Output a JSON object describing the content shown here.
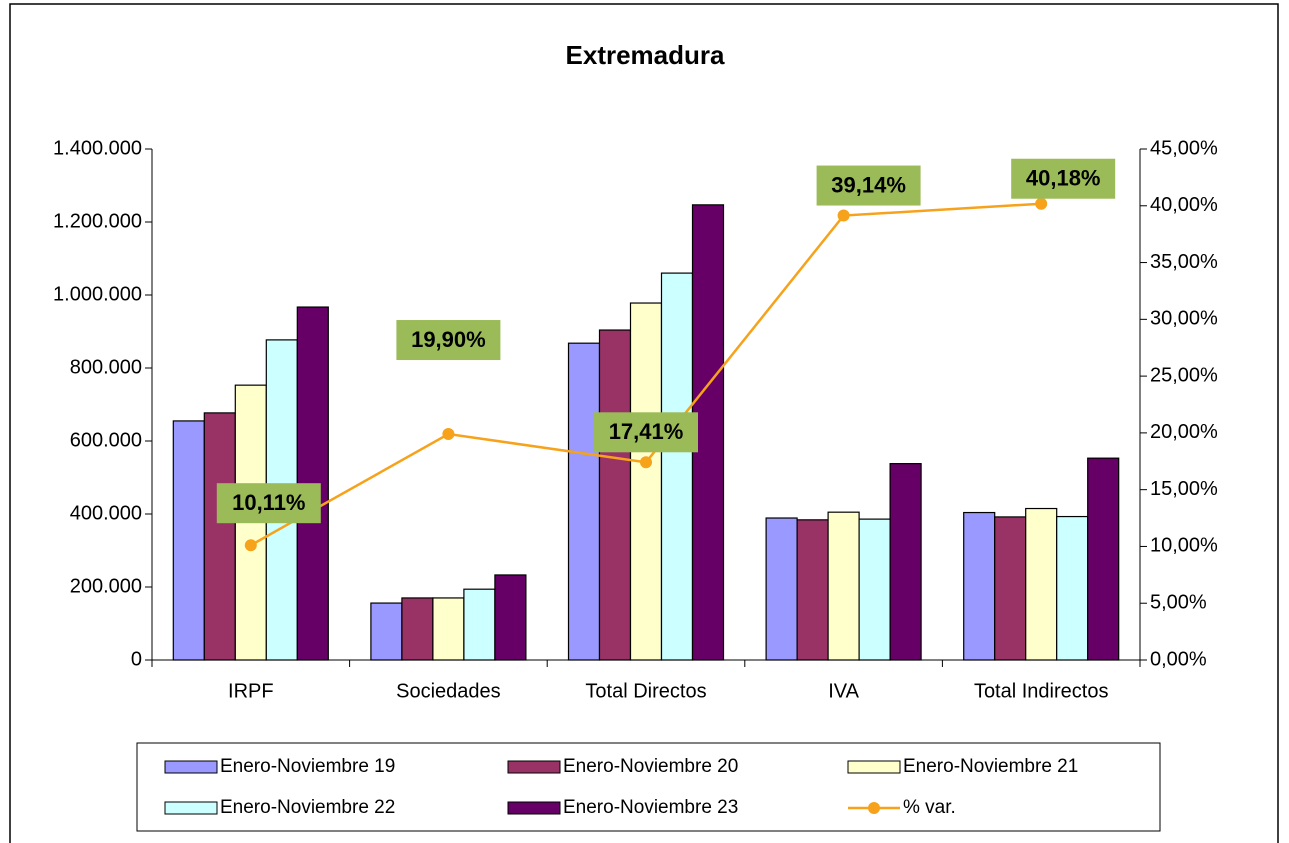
{
  "chart_data": {
    "type": "bar",
    "title": "Extremadura",
    "categories": [
      "IRPF",
      "Sociedades",
      "Total Directos",
      "IVA",
      "Total Indirectos"
    ],
    "series": [
      {
        "name": "Enero-Noviembre 19",
        "color": "#9999ff",
        "values": [
          655000,
          156000,
          868000,
          389000,
          404000
        ]
      },
      {
        "name": "Enero-Noviembre 20",
        "color": "#993366",
        "values": [
          677000,
          170000,
          904000,
          384000,
          392000
        ]
      },
      {
        "name": "Enero-Noviembre 21",
        "color": "#ffffcc",
        "values": [
          753000,
          170000,
          978000,
          405000,
          415000
        ]
      },
      {
        "name": "Enero-Noviembre 22",
        "color": "#ccffff",
        "values": [
          877000,
          194000,
          1060000,
          386000,
          393000
        ]
      },
      {
        "name": "Enero-Noviembre 23",
        "color": "#660066",
        "values": [
          967000,
          233000,
          1247000,
          538000,
          553000
        ]
      },
      {
        "name": "% var.",
        "color": "#f7a21b",
        "type": "line",
        "axis": "y2",
        "values": [
          10.11,
          19.9,
          17.41,
          39.14,
          40.18
        ],
        "value_labels": [
          "10,11%",
          "19,90%",
          "17,41%",
          "39,14%",
          "40,18%"
        ]
      }
    ],
    "ylim": [
      0,
      1400000
    ],
    "yticks": [
      0,
      {
        "value": 200000,
        "label": "200.000"
      },
      {
        "value": 400000,
        "label": "400.000"
      },
      {
        "value": 600000,
        "label": "600.000"
      },
      {
        "value": 800000,
        "label": "800.000"
      },
      {
        "value": 1000000,
        "label": "1.000.000"
      },
      {
        "value": 1200000,
        "label": "1.200.000"
      },
      {
        "value": 1400000,
        "label": "1.400.000"
      }
    ],
    "y2lim": [
      0,
      45
    ],
    "y2ticks": [
      {
        "value": 0,
        "label": "0,00%"
      },
      {
        "value": 5,
        "label": "5,00%"
      },
      {
        "value": 10,
        "label": "10,00%"
      },
      {
        "value": 15,
        "label": "15,00%"
      },
      {
        "value": 20,
        "label": "20,00%"
      },
      {
        "value": 25,
        "label": "25,00%"
      },
      {
        "value": 30,
        "label": "30,00%"
      },
      {
        "value": 35,
        "label": "35,00%"
      },
      {
        "value": 40,
        "label": "40,00%"
      },
      {
        "value": 45,
        "label": "45,00%"
      }
    ],
    "label_color": "#9bbb59"
  }
}
